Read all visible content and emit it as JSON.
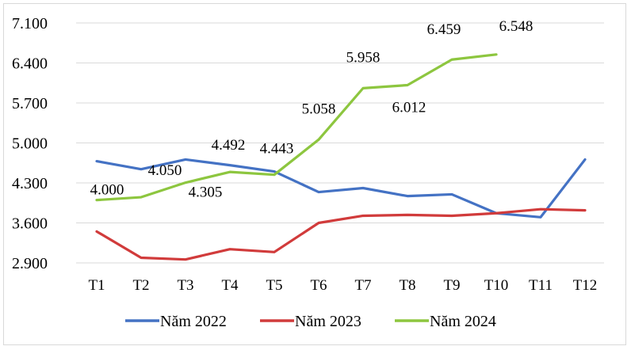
{
  "chart_data": {
    "type": "line",
    "title": "",
    "xlabel": "",
    "ylabel": "",
    "categories": [
      "T1",
      "T2",
      "T3",
      "T4",
      "T5",
      "T6",
      "T7",
      "T8",
      "T9",
      "T10",
      "T11",
      "T12"
    ],
    "ylim": [
      2900,
      7100
    ],
    "yticks": [
      2900,
      3600,
      4300,
      5000,
      5700,
      6400,
      7100
    ],
    "ytick_labels": [
      "2.900",
      "3.600",
      "4.300",
      "5.000",
      "5.700",
      "6.400",
      "7.100"
    ],
    "grid": true,
    "legend_position": "bottom",
    "series": [
      {
        "name": "Năm 2022",
        "color": "#4472c4",
        "values": [
          4680,
          4540,
          4710,
          4610,
          4500,
          4140,
          4210,
          4070,
          4100,
          3770,
          3700,
          4710
        ]
      },
      {
        "name": "Năm 2023",
        "color": "#d13b3b",
        "values": [
          3450,
          2990,
          2960,
          3140,
          3090,
          3600,
          3725,
          3740,
          3725,
          3770,
          3840,
          3820
        ]
      },
      {
        "name": "Năm 2024",
        "color": "#8dc63f",
        "values": [
          4000,
          4050,
          4305,
          4492,
          4443,
          5058,
          5958,
          6012,
          6459,
          6548,
          null,
          null
        ],
        "data_labels": [
          "4.000",
          "4.050",
          "4.305",
          "4.492",
          "4.443",
          "5.058",
          "5.958",
          "6.012",
          "6.459",
          "6.548"
        ]
      }
    ]
  }
}
